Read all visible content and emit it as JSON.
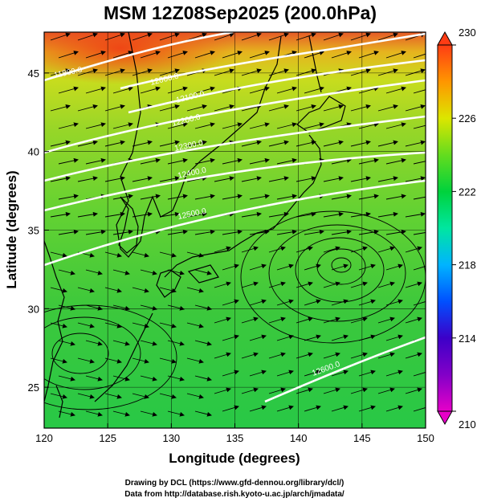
{
  "title": "MSM 12Z08Sep2025 (200.0hPa)",
  "xlabel": "Longitude (degrees)",
  "ylabel": "Latitude  (degrees)",
  "credits": [
    "Drawing by DCL (https://www.gfd-dennou.org/library/dcl/)",
    "Data from http://database.rish.kyoto-u.ac.jp/arch/jmadata/"
  ],
  "map": {
    "xlim": [
      120,
      150
    ],
    "ylim": [
      22.4,
      47.6
    ],
    "xticks": [
      "120",
      "125",
      "130",
      "135",
      "140",
      "145",
      "150"
    ],
    "yticks": [
      "25",
      "30",
      "35",
      "40",
      "45"
    ],
    "grid": true
  },
  "colorbar": {
    "min": 210,
    "max": 230,
    "ticks": [
      "210",
      "214",
      "218",
      "222",
      "226",
      "230"
    ],
    "colors": [
      "#e600c8",
      "#3c00c8",
      "#0050ff",
      "#00c8ff",
      "#00e6a0",
      "#00d23c",
      "#64dc1e",
      "#c8e600",
      "#ffd200",
      "#ff8200",
      "#ff3c14"
    ]
  },
  "contours": {
    "labels": [
      "11800.0",
      "12000.0",
      "12100.0",
      "12200.0",
      "12300.0",
      "12400.0",
      "12500.0",
      "12600.0"
    ],
    "color": "#ffffff"
  }
}
